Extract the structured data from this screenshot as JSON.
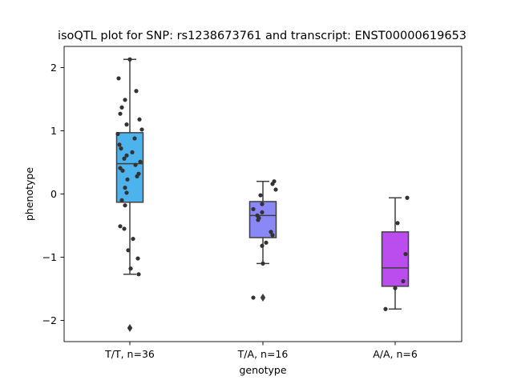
{
  "chart_data": {
    "type": "box",
    "title": "isoQTL plot for SNP: rs1238673761 and transcript: ENST00000619653",
    "xlabel": "genotype",
    "ylabel": "phenotype",
    "ylim": [
      -2.33,
      2.33
    ],
    "yticks": [
      -2,
      -1,
      0,
      1,
      2
    ],
    "ytick_labels": [
      "−2",
      "−1",
      "0",
      "1",
      "2"
    ],
    "grid": false,
    "categories": [
      "T/T, n=36",
      "T/A, n=16",
      "A/A, n=6"
    ],
    "box_colors": [
      "#4db3ec",
      "#8a87f7",
      "#bb4ced"
    ],
    "boxes": [
      {
        "q1": -0.13,
        "median": 0.48,
        "q3": 0.97,
        "whisker_low": -1.27,
        "whisker_high": 2.13,
        "fliers": [
          -2.12
        ],
        "points": [
          2.13,
          1.83,
          1.63,
          1.49,
          1.37,
          1.27,
          1.18,
          1.1,
          1.02,
          0.95,
          0.88,
          0.78,
          0.72,
          0.66,
          0.61,
          0.56,
          0.51,
          0.46,
          0.41,
          0.37,
          0.32,
          0.28,
          0.23,
          0.1,
          0.02,
          -0.1,
          -0.18,
          -0.51,
          -0.55,
          -0.71,
          -0.89,
          -1.02,
          -1.18,
          -1.27,
          -2.12,
          -2.12
        ]
      },
      {
        "q1": -0.69,
        "median": -0.34,
        "q3": -0.12,
        "whisker_low": -1.1,
        "whisker_high": 0.2,
        "fliers": [
          -1.64
        ],
        "points": [
          0.2,
          0.16,
          0.07,
          -0.02,
          -0.16,
          -0.24,
          -0.29,
          -0.34,
          -0.38,
          -0.41,
          -0.6,
          -0.65,
          -0.77,
          -0.82,
          -1.1,
          -1.64
        ]
      },
      {
        "q1": -1.46,
        "median": -1.17,
        "q3": -0.6,
        "whisker_low": -1.82,
        "whisker_high": -0.06,
        "fliers": [],
        "points": [
          -0.06,
          -0.46,
          -0.95,
          -1.38,
          -1.49,
          -1.82
        ]
      }
    ]
  }
}
